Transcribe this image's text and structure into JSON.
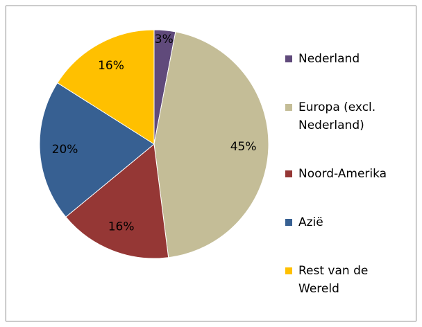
{
  "chart_data": {
    "type": "pie",
    "categories": [
      "Nederland",
      "Europa (excl. Nederland)",
      "Noord-Amerika",
      "Azië",
      "Rest van de Wereld"
    ],
    "values": [
      3,
      45,
      16,
      20,
      16
    ],
    "value_labels": [
      "3%",
      "45%",
      "16%",
      "20%",
      "16%"
    ],
    "colors": [
      "#604a7b",
      "#c4bd97",
      "#953735",
      "#376092",
      "#ffc000"
    ],
    "legend": "right"
  }
}
